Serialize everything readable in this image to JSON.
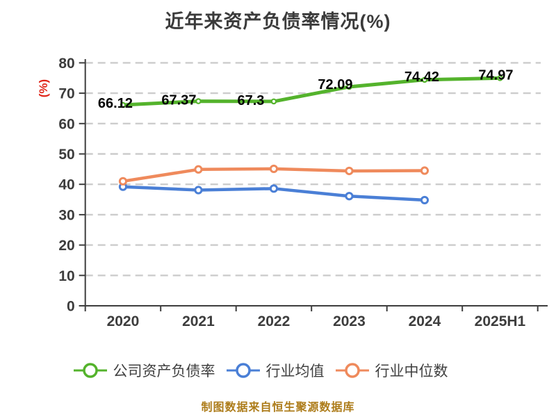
{
  "footer": {
    "source_note": "制图数据来自恒生聚源数据库"
  },
  "colors": {
    "title": "#3b3b3b",
    "axis": "#3d3d3d",
    "tick_label": "#3d3d3d",
    "grid": "#cccccc",
    "ylabel": "#e0261a",
    "value_label": "#050505",
    "legend_text": "#3f3f3f",
    "source_note": "#ad7c1a",
    "background": "#ffffff"
  },
  "chart_data": {
    "type": "line",
    "title": "近年来资产负债率情况(%)",
    "ylabel": "(%)",
    "xlabel": "",
    "ylim": [
      0,
      80
    ],
    "yticks": [
      0,
      10,
      20,
      30,
      40,
      50,
      60,
      70,
      80
    ],
    "grid": "horizontal-dashed",
    "legend_position": "bottom",
    "categories": [
      "2020",
      "2021",
      "2022",
      "2023",
      "2024",
      "2025H1"
    ],
    "series": [
      {
        "name": "公司资产负债率",
        "color": "#54b32c",
        "marker": "open-circle",
        "values": [
          66.12,
          67.37,
          67.3,
          72.09,
          74.42,
          74.97
        ],
        "point_labels": [
          "66.12",
          "67.37",
          "67.3",
          "72.09",
          "74.42",
          "74.97"
        ]
      },
      {
        "name": "行业均值",
        "color": "#4a7fd6",
        "marker": "open-circle",
        "values": [
          39.2,
          38.1,
          38.6,
          36.1,
          34.8,
          null
        ],
        "point_labels": []
      },
      {
        "name": "行业中位数",
        "color": "#ef8a5c",
        "marker": "open-circle",
        "values": [
          41.0,
          44.9,
          45.1,
          44.4,
          44.5,
          null
        ],
        "point_labels": []
      }
    ]
  }
}
